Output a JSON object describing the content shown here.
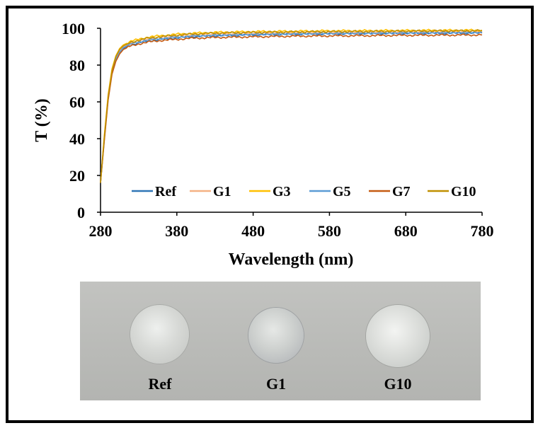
{
  "chart_data": {
    "type": "line",
    "title": "",
    "xlabel": "Wavelength (nm)",
    "ylabel": "T (%)",
    "xlim": [
      280,
      780
    ],
    "ylim": [
      0,
      100
    ],
    "xticks": [
      "280",
      "380",
      "480",
      "580",
      "680",
      "780"
    ],
    "yticks": [
      "0",
      "20",
      "40",
      "60",
      "80",
      "100"
    ],
    "grid": false,
    "legend_position": "bottom-inside",
    "series": [
      {
        "name": "Ref",
        "color": "#2e75b6",
        "x": [
          280,
          285,
          290,
          295,
          300,
          305,
          310,
          320,
          330,
          340,
          350,
          360,
          380,
          400,
          430,
          480,
          530,
          580,
          630,
          680,
          730,
          780
        ],
        "y": [
          16,
          40,
          62,
          76,
          83,
          87,
          89,
          91,
          92,
          93,
          93.5,
          94,
          94.8,
          95.5,
          96,
          96.5,
          96.8,
          97,
          97.2,
          97.3,
          97.4,
          97.5
        ]
      },
      {
        "name": "G1",
        "color": "#f4b183",
        "x": [
          280,
          285,
          290,
          295,
          300,
          305,
          310,
          320,
          330,
          340,
          350,
          360,
          380,
          400,
          430,
          480,
          530,
          580,
          630,
          680,
          730,
          780
        ],
        "y": [
          16,
          41,
          63,
          77,
          84,
          88,
          90,
          92,
          93,
          94,
          94.5,
          95,
          95.8,
          96.3,
          96.8,
          97.2,
          97.5,
          97.7,
          97.8,
          98,
          98.1,
          98.2
        ]
      },
      {
        "name": "G3",
        "color": "#ffc000",
        "x": [
          280,
          285,
          290,
          295,
          300,
          305,
          310,
          320,
          330,
          340,
          350,
          360,
          380,
          400,
          430,
          480,
          530,
          580,
          630,
          680,
          730,
          780
        ],
        "y": [
          16,
          42,
          64,
          78,
          85,
          89,
          91,
          93,
          94,
          95,
          95.6,
          96,
          96.8,
          97.3,
          97.8,
          98.2,
          98.4,
          98.6,
          98.7,
          98.8,
          98.9,
          99
        ]
      },
      {
        "name": "G5",
        "color": "#5b9bd5",
        "x": [
          280,
          285,
          290,
          295,
          300,
          305,
          310,
          320,
          330,
          340,
          350,
          360,
          380,
          400,
          430,
          480,
          530,
          580,
          630,
          680,
          730,
          780
        ],
        "y": [
          16,
          40,
          62,
          76,
          83,
          87,
          89.5,
          91.5,
          92.5,
          93.5,
          94,
          94.5,
          95.2,
          95.8,
          96.2,
          96.7,
          97,
          97.2,
          97.3,
          97.5,
          97.6,
          97.7
        ]
      },
      {
        "name": "G7",
        "color": "#c55a11",
        "x": [
          280,
          285,
          290,
          295,
          300,
          305,
          310,
          320,
          330,
          340,
          350,
          360,
          380,
          400,
          430,
          480,
          530,
          580,
          630,
          680,
          730,
          780
        ],
        "y": [
          16,
          39,
          61,
          75,
          82,
          86,
          88.5,
          90.5,
          91.5,
          92.3,
          93,
          93.4,
          94,
          94.6,
          95,
          95.4,
          95.7,
          95.9,
          96,
          96.2,
          96.3,
          96.4
        ]
      },
      {
        "name": "G10",
        "color": "#bf8f00",
        "x": [
          280,
          285,
          290,
          295,
          300,
          305,
          310,
          320,
          330,
          340,
          350,
          360,
          380,
          400,
          430,
          480,
          530,
          580,
          630,
          680,
          730,
          780
        ],
        "y": [
          16,
          41,
          63,
          77,
          84.5,
          88.5,
          90.5,
          92.5,
          93.5,
          94.5,
          95,
          95.5,
          96.3,
          96.9,
          97.4,
          97.8,
          98,
          98.2,
          98.3,
          98.5,
          98.6,
          98.7
        ]
      }
    ]
  },
  "photo": {
    "labels": [
      "Ref",
      "G1",
      "G10"
    ]
  }
}
